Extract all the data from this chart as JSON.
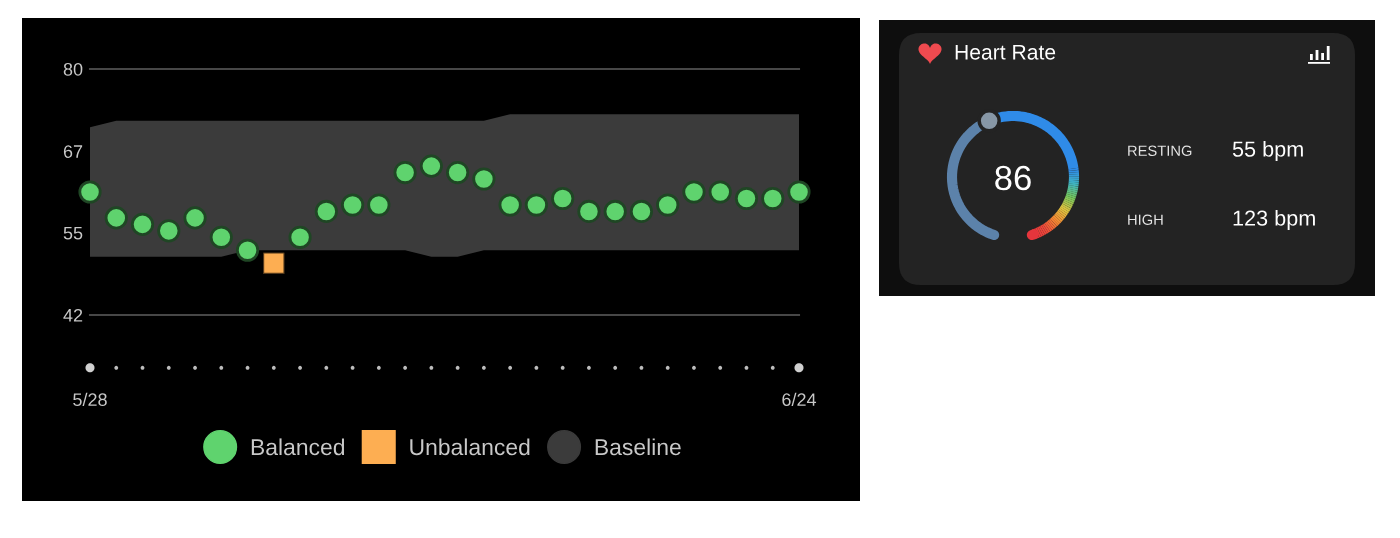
{
  "chart_data": [
    {
      "type": "scatter",
      "categories": [
        "5/28",
        null,
        null,
        null,
        null,
        null,
        null,
        null,
        null,
        null,
        null,
        null,
        null,
        null,
        null,
        null,
        null,
        null,
        null,
        null,
        null,
        null,
        null,
        null,
        null,
        null,
        null,
        "6/24"
      ],
      "ylim": [
        42,
        80
      ],
      "yticks": [
        80,
        {
          "value": 67.3,
          "label": "67"
        },
        {
          "value": 54.7,
          "label": "55"
        },
        42
      ],
      "ref_lines": [
        {
          "axis": "y",
          "value": 80,
          "color": "#474747"
        },
        {
          "axis": "y",
          "value": 42,
          "color": "#474747"
        }
      ],
      "legend": "bottom",
      "series": [
        {
          "name": "Balanced",
          "type": "scatter",
          "marker": "circle",
          "color": "#5fd36e",
          "values": [
            61,
            57,
            56,
            55,
            57,
            54,
            52,
            null,
            54,
            58,
            59,
            59,
            64,
            65,
            64,
            63,
            59,
            59,
            60,
            58,
            58,
            58,
            59,
            61,
            61,
            60,
            60,
            61
          ]
        },
        {
          "name": "Unbalanced",
          "type": "scatter",
          "marker": "square",
          "color": "#fdae52",
          "values": [
            null,
            null,
            null,
            null,
            null,
            null,
            null,
            50,
            null,
            null,
            null,
            null,
            null,
            null,
            null,
            null,
            null,
            null,
            null,
            null,
            null,
            null,
            null,
            null,
            null,
            null,
            null,
            null
          ]
        },
        {
          "name": "Baseline",
          "type": "area",
          "color": "#3b3b3b",
          "values": [
            null,
            null,
            null,
            null,
            null,
            null,
            null,
            null,
            null,
            null,
            null,
            null,
            null,
            null,
            null,
            null,
            null,
            null,
            null,
            null,
            null,
            null,
            null,
            null,
            null,
            null,
            null,
            null
          ],
          "lower": [
            51,
            51,
            51,
            51,
            51,
            51,
            52,
            52,
            52,
            52,
            52,
            52,
            52,
            51,
            51,
            52,
            52,
            52,
            52,
            52,
            52,
            52,
            52,
            52,
            52,
            52,
            52,
            52
          ],
          "upper": [
            71,
            72,
            72,
            72,
            72,
            72,
            72,
            72,
            72,
            72,
            72,
            72,
            72,
            72,
            72,
            72,
            73,
            73,
            73,
            73,
            73,
            73,
            73,
            73,
            73,
            73,
            73,
            73
          ]
        }
      ]
    },
    {
      "type": "other",
      "title": "Heart Rate",
      "categories": [
        "RESTING",
        "HIGH"
      ],
      "value_labels": [
        "55 bpm",
        "123 bpm"
      ],
      "annotations": [
        "86"
      ]
    }
  ]
}
